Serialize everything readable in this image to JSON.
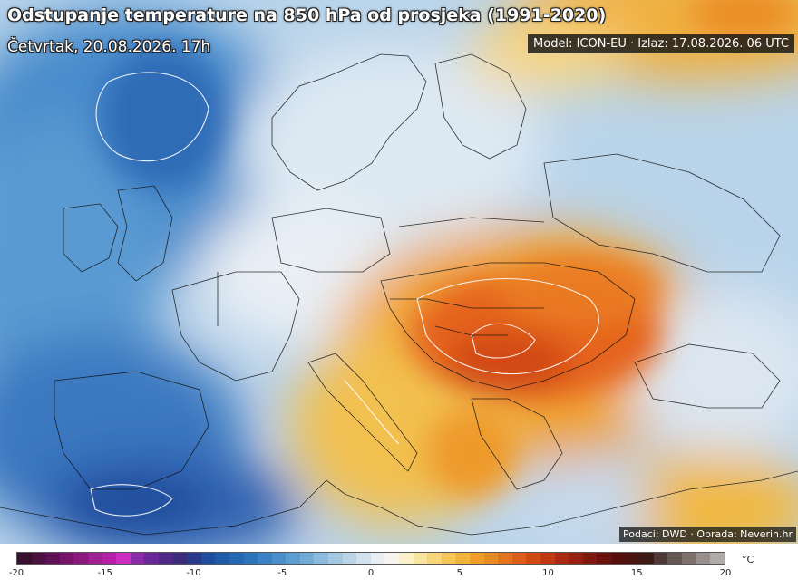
{
  "header": {
    "title": "Odstupanje temperature na 850 hPa od prosjeka (1991-2020)",
    "subtitle": "Četvrtak, 20.08.2026. 17h",
    "model_info": "Model: ICON-EU · Izlaz: 17.08.2026. 06 UTC"
  },
  "footer": {
    "credits": "Podaci: DWD · Obrada: Neverin.hr"
  },
  "legend": {
    "unit": "°C",
    "ticks": [
      "-20",
      "-15",
      "-10",
      "-5",
      "0",
      "5",
      "10",
      "15",
      "20"
    ],
    "colors": [
      "#3a0f2e",
      "#4a1240",
      "#5e1255",
      "#751468",
      "#8c1a7e",
      "#a21f94",
      "#b81eaa",
      "#cc2dbf",
      "#8a2aa6",
      "#6a2896",
      "#4e2a86",
      "#3a2c7a",
      "#2a3a8a",
      "#1f4c9c",
      "#1e5ca8",
      "#2468b4",
      "#2c74bc",
      "#3a82c4",
      "#4b8fca",
      "#5e9dd0",
      "#74acd6",
      "#8bbadc",
      "#a3c8e2",
      "#bbd5e8",
      "#d2e2ee",
      "#e8eef4",
      "#f6f4ee",
      "#fbf0c8",
      "#f9e4a0",
      "#f7d67a",
      "#f4c655",
      "#f1b43a",
      "#ee9f2a",
      "#ea8a22",
      "#e5741c",
      "#dd5e17",
      "#d14a14",
      "#c13913",
      "#ad2a12",
      "#972012",
      "#811810",
      "#6c120e",
      "#58100c",
      "#4a1410",
      "#3e1a16",
      "#4d3a36",
      "#665652",
      "#7e706c",
      "#97908c",
      "#b0acaa"
    ]
  }
}
